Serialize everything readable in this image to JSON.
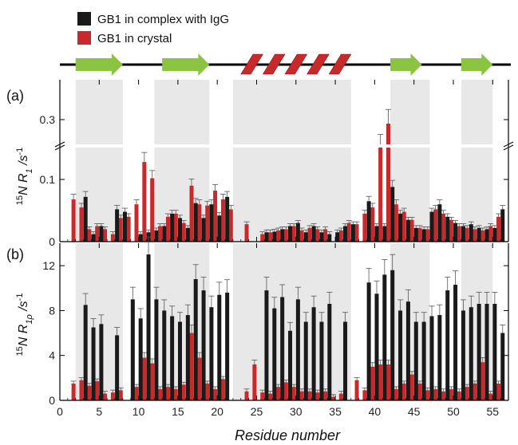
{
  "colors": {
    "complex": "#1a1a1a",
    "crystal": "#c8292b",
    "strand": "#8bc440",
    "helix": "#c8292b",
    "shade": "#e8e8e8"
  },
  "legend": [
    {
      "label": "GB1 in complex with IgG",
      "color": "#1a1a1a"
    },
    {
      "label": "GB1 in crystal",
      "color": "#c8292b"
    }
  ],
  "panel_labels": [
    "(a)",
    "(b)"
  ],
  "xlabel": "Residue number",
  "chart_data": [
    {
      "type": "bar",
      "panel": "(a)",
      "ylabel": "15N R1 /s-1",
      "xlabel": "Residue number",
      "xlim": [
        0,
        57
      ],
      "ylim": [
        0,
        0.35
      ],
      "y_break": [
        0.15,
        0.27
      ],
      "xticks": [
        0,
        5,
        10,
        15,
        20,
        25,
        30,
        35,
        40,
        45,
        50,
        55
      ],
      "yticks": [
        0,
        0.1,
        0.3
      ],
      "ytick_labels": [
        "0",
        "0.1",
        "0.3"
      ],
      "shaded_regions": [
        [
          2,
          8
        ],
        [
          12,
          19
        ],
        [
          22,
          37
        ],
        [
          42,
          47
        ],
        [
          51,
          55
        ]
      ],
      "secondary_structure": [
        {
          "type": "strand",
          "range": [
            2,
            8
          ]
        },
        {
          "type": "strand",
          "range": [
            13,
            19
          ]
        },
        {
          "type": "helix",
          "range": [
            23,
            37
          ]
        },
        {
          "type": "strand",
          "range": [
            42,
            46
          ]
        },
        {
          "type": "strand",
          "range": [
            51,
            55
          ]
        }
      ],
      "series": [
        {
          "name": "GB1 in complex with IgG",
          "x": [
            3,
            4,
            5,
            7,
            8,
            10,
            11,
            12,
            13,
            14,
            15,
            16,
            17,
            18,
            19,
            20,
            21,
            26,
            27,
            28,
            29,
            30,
            31,
            32,
            33,
            34,
            35,
            36,
            37,
            39,
            40,
            41,
            42,
            43,
            44,
            45,
            46,
            47,
            48,
            49,
            50,
            51,
            52,
            53,
            54,
            55,
            56
          ],
          "values": [
            0.072,
            0.012,
            0.025,
            0.052,
            0.048,
            0.012,
            0.015,
            0.018,
            0.025,
            0.045,
            0.038,
            0.022,
            0.062,
            0.038,
            0.06,
            0.042,
            0.072,
            0.015,
            0.016,
            0.02,
            0.025,
            0.03,
            0.015,
            0.025,
            0.015,
            0.012,
            0.015,
            0.025,
            0.028,
            0.065,
            0.025,
            0.025,
            0.088,
            0.045,
            0.035,
            0.022,
            0.02,
            0.048,
            0.06,
            0.04,
            0.03,
            0.025,
            0.028,
            0.022,
            0.02,
            0.022,
            0.052
          ]
        },
        {
          "name": "GB1 in crystal",
          "x": [
            2,
            3,
            4,
            5,
            6,
            7,
            8,
            9,
            10,
            11,
            12,
            13,
            14,
            15,
            16,
            17,
            18,
            19,
            20,
            21,
            22,
            24,
            26,
            27,
            28,
            29,
            30,
            31,
            32,
            33,
            34,
            36,
            37,
            38,
            39,
            40,
            41,
            42,
            43,
            44,
            45,
            46,
            47,
            48,
            49,
            50,
            51,
            52,
            53,
            54,
            55,
            56
          ],
          "values": [
            0.068,
            0.055,
            0.02,
            0.025,
            0.02,
            0.012,
            0.038,
            0.04,
            0.06,
            0.128,
            0.102,
            0.025,
            0.04,
            0.045,
            0.03,
            0.09,
            0.06,
            0.058,
            0.082,
            0.068,
            0.052,
            0.028,
            0.012,
            0.015,
            0.018,
            0.02,
            0.025,
            0.018,
            0.022,
            0.02,
            0.02,
            0.018,
            0.03,
            0.028,
            0.045,
            0.055,
            0.155,
            0.295,
            0.06,
            0.048,
            0.035,
            0.022,
            0.02,
            0.052,
            0.045,
            0.035,
            0.025,
            0.022,
            0.02,
            0.018,
            0.025,
            0.04
          ]
        }
      ]
    },
    {
      "type": "bar",
      "panel": "(b)",
      "ylabel": "15N R1ρ /s-1",
      "xlabel": "Residue number",
      "xlim": [
        0,
        57
      ],
      "ylim": [
        0,
        14
      ],
      "xticks": [
        0,
        5,
        10,
        15,
        20,
        25,
        30,
        35,
        40,
        45,
        50,
        55
      ],
      "xtick_labels": [
        "0",
        "5",
        "10",
        "15",
        "20",
        "25",
        "30",
        "35",
        "40",
        "45",
        "50",
        "55"
      ],
      "yticks": [
        0,
        4,
        8,
        12
      ],
      "ytick_labels": [
        "0",
        "4",
        "8",
        "12"
      ],
      "shaded_regions": [
        [
          2,
          8
        ],
        [
          12,
          19
        ],
        [
          22,
          37
        ],
        [
          42,
          47
        ],
        [
          51,
          55
        ]
      ],
      "series": [
        {
          "name": "GB1 in complex with IgG",
          "x": [
            3,
            4,
            5,
            7,
            9,
            10,
            11,
            12,
            13,
            14,
            15,
            16,
            17,
            18,
            19,
            20,
            21,
            26,
            27,
            28,
            29,
            30,
            31,
            32,
            33,
            34,
            36,
            39,
            40,
            41,
            42,
            43,
            44,
            45,
            46,
            47,
            48,
            49,
            50,
            51,
            52,
            53,
            54,
            55,
            56
          ],
          "values": [
            8.5,
            6.5,
            6.8,
            5.8,
            9.0,
            7.3,
            13.0,
            9.0,
            8.0,
            7.5,
            7.0,
            7.6,
            10.8,
            9.8,
            8.3,
            9.4,
            9.6,
            9.8,
            8.2,
            9.2,
            6.2,
            9.0,
            7.0,
            8.3,
            7.0,
            8.6,
            7.0,
            10.5,
            9.5,
            11.2,
            11.6,
            8.0,
            8.8,
            7.0,
            7.0,
            7.5,
            7.6,
            9.8,
            10.3,
            8.0,
            8.3,
            8.6,
            8.6,
            8.6,
            6.0
          ]
        },
        {
          "name": "GB1 in crystal",
          "x": [
            2,
            3,
            4,
            5,
            6,
            7,
            8,
            10,
            11,
            12,
            13,
            14,
            15,
            16,
            17,
            18,
            19,
            20,
            21,
            24,
            25,
            26,
            27,
            28,
            29,
            30,
            31,
            32,
            33,
            34,
            35,
            36,
            38,
            39,
            40,
            41,
            42,
            43,
            44,
            45,
            46,
            47,
            48,
            49,
            50,
            51,
            52,
            53,
            54,
            55,
            56
          ],
          "values": [
            1.5,
            1.8,
            1.3,
            1.7,
            0.6,
            0.7,
            0.9,
            1.2,
            3.8,
            3.3,
            1.0,
            1.2,
            1.0,
            1.4,
            6.0,
            3.8,
            1.5,
            1.0,
            1.9,
            0.8,
            3.2,
            0.7,
            0.6,
            1.2,
            1.6,
            1.2,
            0.8,
            0.8,
            0.7,
            0.8,
            0.3,
            0.6,
            1.8,
            0.9,
            3.0,
            3.2,
            3.2,
            1.0,
            1.5,
            2.3,
            1.5,
            0.9,
            1.0,
            0.8,
            1.0,
            0.8,
            1.2,
            1.5,
            3.4,
            0.6,
            1.5
          ]
        }
      ]
    }
  ]
}
